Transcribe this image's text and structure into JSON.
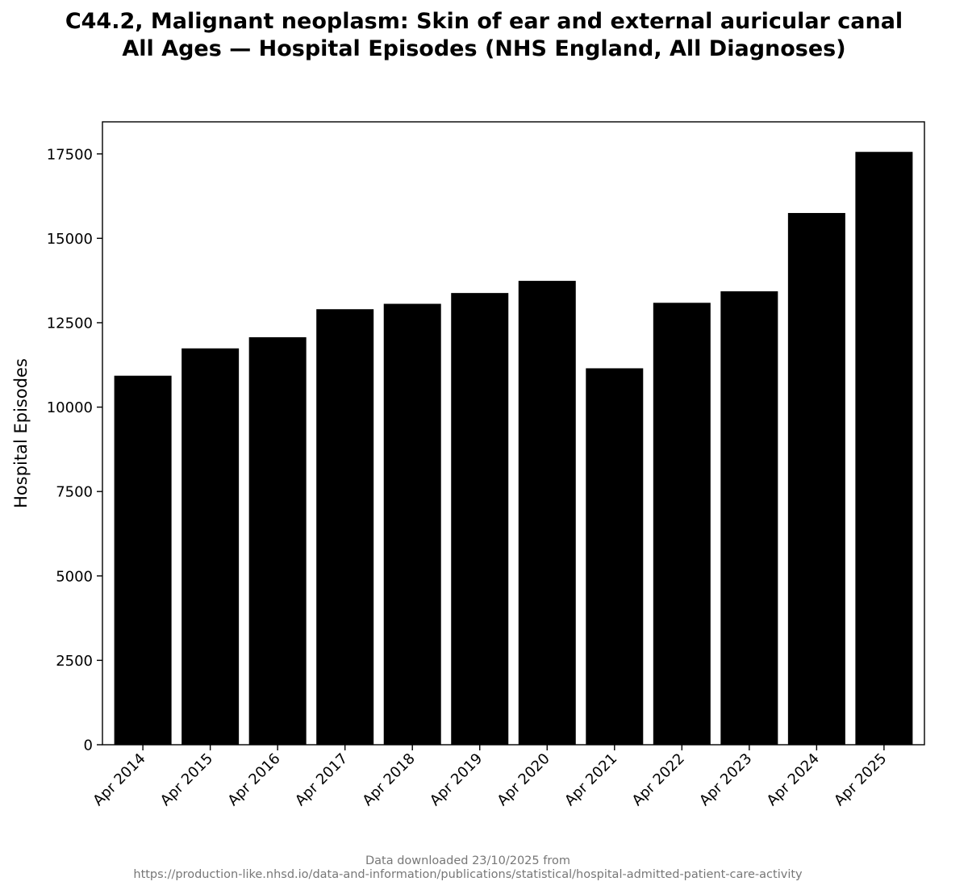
{
  "chart_data": {
    "type": "bar",
    "title_line1": "C44.2, Malignant neoplasm: Skin of ear and external auricular canal",
    "title_line2": "All Ages — Hospital Episodes (NHS England, All Diagnoses)",
    "ylabel": "Hospital Episodes",
    "xlabel": "",
    "categories": [
      "Apr 2014",
      "Apr 2015",
      "Apr 2016",
      "Apr 2017",
      "Apr 2018",
      "Apr 2019",
      "Apr 2020",
      "Apr 2021",
      "Apr 2022",
      "Apr 2023",
      "Apr 2024",
      "Apr 2025"
    ],
    "values": [
      10930,
      11740,
      12070,
      12900,
      13060,
      13380,
      13740,
      11150,
      13090,
      13430,
      15750,
      17560
    ],
    "ylim": [
      0,
      18450
    ],
    "yticks": [
      0,
      2500,
      5000,
      7500,
      10000,
      12500,
      15000,
      17500
    ],
    "bar_color": "#000000",
    "grid": false,
    "legend": "none"
  },
  "footer": {
    "line1": "Data downloaded 23/10/2025 from",
    "line2": "https://production-like.nhsd.io/data-and-information/publications/statistical/hospital-admitted-patient-care-activity"
  }
}
